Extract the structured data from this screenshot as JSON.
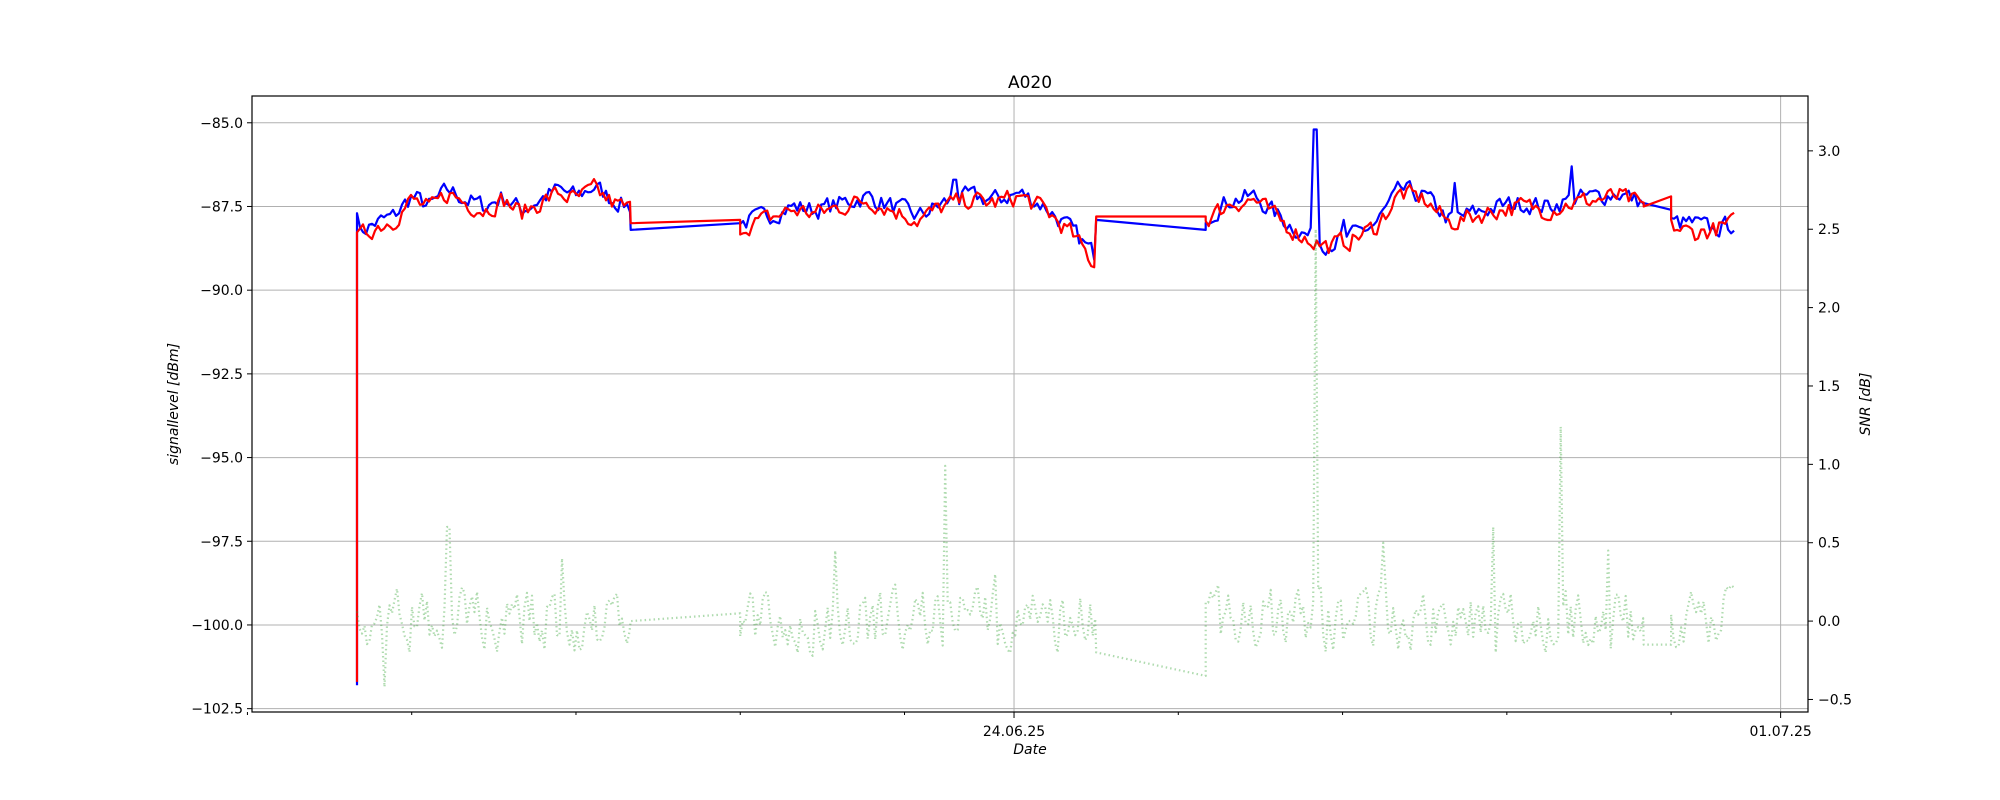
{
  "chart_data": {
    "type": "line",
    "title": "A020",
    "xlabel": "Date",
    "ylabel_left": "signallevel [dBm]",
    "ylabel_right": "SNR [dB]",
    "x_range": [
      "2025-06-17T01:00",
      "2025-07-01T06:00"
    ],
    "ylim_left": [
      -102.6,
      -84.2
    ],
    "ylim_right": [
      -0.58,
      3.35
    ],
    "x_tick_labels": [
      {
        "date": "2025-06-24T00:00",
        "label": "24.06.25"
      },
      {
        "date": "2025-07-01T00:00",
        "label": "01.07.25"
      }
    ],
    "x_minor_ticks": [
      "2025-06-17T00:00",
      "2025-06-18T12:00",
      "2025-06-20T00:00",
      "2025-06-21T12:00",
      "2025-06-23T00:00",
      "2025-06-25T12:00",
      "2025-06-27T00:00",
      "2025-06-28T12:00",
      "2025-06-30T00:00"
    ],
    "y_left_ticks": [
      -102.5,
      -100.0,
      -97.5,
      -95.0,
      -92.5,
      -90.0,
      -87.5,
      -85.0
    ],
    "y_left_tick_labels": [
      "−102.5",
      "−100.0",
      "−97.5",
      "−95.0",
      "−92.5",
      "−90.0",
      "−87.5",
      "−85.0"
    ],
    "y_right_ticks": [
      -0.5,
      0.0,
      0.5,
      1.0,
      1.5,
      2.0,
      2.5,
      3.0
    ],
    "y_right_tick_labels": [
      "−0.5",
      "0.0",
      "0.5",
      "1.0",
      "1.5",
      "2.0",
      "2.5",
      "3.0"
    ],
    "grid": true,
    "series": [
      {
        "axis": "left",
        "color": "#0000ff",
        "style": "solid",
        "segments": [
          {
            "start": "2025-06-18T00:00",
            "end": "2025-06-18T00:00",
            "anchors": [
              -101.8
            ]
          },
          {
            "start": "2025-06-18T00:00",
            "end": "2025-06-20T12:00",
            "anchors": [
              -88.3,
              -88.0,
              -87.8,
              -87.2,
              -87.5,
              -87.0,
              -87.3,
              -87.5,
              -87.2,
              -87.6,
              -87.3,
              -87.0,
              -87.2,
              -86.9,
              -87.3,
              -87.5
            ],
            "spikes": [
              {
                "date": "2025-06-18T00:15",
                "value": -87.7
              }
            ]
          },
          {
            "start": "2025-06-20T12:00",
            "end": "2025-06-21T12:00",
            "anchors": [
              -88.2,
              -88.0
            ]
          },
          {
            "start": "2025-06-21T12:00",
            "end": "2025-06-24T18:00",
            "anchors": [
              -88.0,
              -87.8,
              -87.5,
              -87.6,
              -87.4,
              -87.2,
              -87.5,
              -87.8,
              -87.4,
              -87.2,
              -87.3,
              -87.1,
              -87.5,
              -88.2,
              -89.0
            ],
            "spikes": [
              {
                "date": "2025-06-23T11:00",
                "value": -86.7
              }
            ]
          },
          {
            "start": "2025-06-24T18:00",
            "end": "2025-06-25T18:00",
            "anchors": [
              -87.9,
              -88.2
            ]
          },
          {
            "start": "2025-06-25T18:00",
            "end": "2025-06-29T18:00",
            "anchors": [
              -87.8,
              -87.3,
              -87.2,
              -87.8,
              -88.3,
              -88.6,
              -88.4,
              -88.0,
              -87.0,
              -87.2,
              -87.9,
              -87.7,
              -87.5,
              -87.4,
              -87.5,
              -87.3,
              -87.2,
              -87.1,
              -87.4
            ],
            "spikes": [
              {
                "date": "2025-06-26T18:00",
                "value": -85.2
              },
              {
                "date": "2025-06-29T02:00",
                "value": -86.3
              },
              {
                "date": "2025-06-28T00:30",
                "value": -86.8
              },
              {
                "date": "2025-06-27T00:00",
                "value": -87.9
              }
            ]
          },
          {
            "start": "2025-06-29T18:00",
            "end": "2025-06-30T00:00",
            "anchors": [
              -87.4,
              -87.6
            ]
          },
          {
            "start": "2025-06-30T00:00",
            "end": "2025-06-30T14:00",
            "anchors": [
              -88.0,
              -88.0,
              -88.2,
              -88.0
            ]
          }
        ]
      },
      {
        "axis": "left",
        "color": "#ff0000",
        "style": "solid",
        "segments": [
          {
            "start": "2025-06-18T00:00",
            "end": "2025-06-18T00:00",
            "anchors": [
              -101.7
            ]
          },
          {
            "start": "2025-06-18T00:00",
            "end": "2025-06-20T12:00",
            "anchors": [
              -88.5,
              -88.1,
              -87.9,
              -87.3,
              -87.6,
              -87.1,
              -87.4,
              -87.6,
              -87.3,
              -87.7,
              -87.4,
              -87.1,
              -87.3,
              -87.0,
              -87.4,
              -87.6
            ]
          },
          {
            "start": "2025-06-20T12:00",
            "end": "2025-06-21T12:00",
            "anchors": [
              -88.0,
              -87.9
            ]
          },
          {
            "start": "2025-06-21T12:00",
            "end": "2025-06-24T18:00",
            "anchors": [
              -88.1,
              -87.9,
              -87.6,
              -87.7,
              -87.5,
              -87.3,
              -87.6,
              -87.9,
              -87.5,
              -87.3,
              -87.4,
              -87.2,
              -87.6,
              -88.3,
              -89.3
            ]
          },
          {
            "start": "2025-06-24T18:00",
            "end": "2025-06-25T18:00",
            "anchors": [
              -87.8,
              -87.8
            ]
          },
          {
            "start": "2025-06-25T18:00",
            "end": "2025-06-29T18:00",
            "anchors": [
              -87.9,
              -87.4,
              -87.3,
              -87.9,
              -88.4,
              -88.7,
              -88.5,
              -88.1,
              -87.1,
              -87.3,
              -88.0,
              -87.8,
              -87.6,
              -87.5,
              -87.6,
              -87.4,
              -87.3,
              -87.2,
              -87.5
            ]
          },
          {
            "start": "2025-06-29T18:00",
            "end": "2025-06-30T00:00",
            "anchors": [
              -87.5,
              -87.2
            ]
          },
          {
            "start": "2025-06-30T00:00",
            "end": "2025-06-30T14:00",
            "anchors": [
              -88.1,
              -88.3,
              -88.2,
              -88.0
            ]
          }
        ]
      },
      {
        "axis": "right",
        "color": "#2ca02c",
        "style": "dotted",
        "segments": [
          {
            "start": "2025-06-18T00:00",
            "end": "2025-06-20T12:00",
            "anchors": [
              0.0,
              0.0,
              0.0,
              0.0
            ],
            "spikes": [
              {
                "date": "2025-06-18T06:00",
                "value": -0.42
              },
              {
                "date": "2025-06-18T20:00",
                "value": 0.6
              },
              {
                "date": "2025-06-19T21:00",
                "value": 0.4
              }
            ]
          },
          {
            "start": "2025-06-20T12:00",
            "end": "2025-06-21T12:00",
            "anchors": [
              0.0,
              0.05
            ]
          },
          {
            "start": "2025-06-21T12:00",
            "end": "2025-06-24T18:00",
            "anchors": [
              0.0,
              0.0,
              0.0,
              0.0
            ],
            "spikes": [
              {
                "date": "2025-06-23T09:00",
                "value": 0.99
              },
              {
                "date": "2025-06-22T09:00",
                "value": 0.45
              },
              {
                "date": "2025-06-23T20:00",
                "value": 0.3
              }
            ]
          },
          {
            "start": "2025-06-24T18:00",
            "end": "2025-06-25T18:00",
            "anchors": [
              -0.2,
              -0.35
            ]
          },
          {
            "start": "2025-06-25T18:00",
            "end": "2025-06-29T18:00",
            "anchors": [
              0.0,
              0.0,
              0.0,
              0.0
            ],
            "spikes": [
              {
                "date": "2025-06-26T18:00",
                "value": 2.5
              },
              {
                "date": "2025-06-29T00:00",
                "value": 1.24
              },
              {
                "date": "2025-06-27T09:00",
                "value": 0.5
              },
              {
                "date": "2025-06-28T09:00",
                "value": 0.6
              },
              {
                "date": "2025-06-29T10:00",
                "value": 0.45
              }
            ]
          },
          {
            "start": "2025-06-29T18:00",
            "end": "2025-06-30T00:00",
            "anchors": [
              -0.15,
              -0.15
            ]
          },
          {
            "start": "2025-06-30T00:00",
            "end": "2025-06-30T14:00",
            "anchors": [
              0.0,
              0.0,
              0.0
            ]
          }
        ]
      }
    ]
  }
}
